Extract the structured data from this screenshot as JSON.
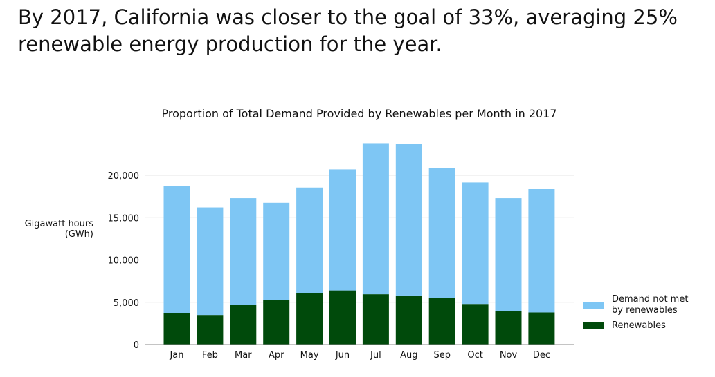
{
  "slide": {
    "title_line1": "By 2017, California was closer to the goal of 33%, averaging 25%",
    "title_line2": "renewable energy production for the year."
  },
  "chart_data": {
    "type": "bar",
    "stacked": true,
    "title": "Proportion of Total Demand Provided by Renewables per Month in 2017",
    "ylabel_line1": "Gigawatt hours",
    "ylabel_line2": "(GWh)",
    "xlabel": "",
    "categories": [
      "Jan",
      "Feb",
      "Mar",
      "Apr",
      "May",
      "Jun",
      "Jul",
      "Aug",
      "Sep",
      "Oct",
      "Nov",
      "Dec"
    ],
    "yticks": [
      0,
      5000,
      10000,
      15000,
      20000
    ],
    "ytick_labels": [
      "0",
      "5,000",
      "10,000",
      "15,000",
      "20,000"
    ],
    "ylim": [
      0,
      24000
    ],
    "grid": true,
    "legend_position": "bottom-right",
    "series": [
      {
        "name": "Renewables",
        "color": "#004a0b",
        "values": [
          3700,
          3500,
          4700,
          5250,
          6050,
          6400,
          5950,
          5800,
          5550,
          4800,
          4000,
          3800
        ]
      },
      {
        "name": "Demand not met by renewables",
        "name_line1": "Demand not met",
        "name_line2": "by renewables",
        "color": "#7ec6f4",
        "values": [
          15000,
          12700,
          12600,
          11500,
          12500,
          14300,
          17850,
          17950,
          15300,
          14350,
          13300,
          14600
        ]
      }
    ]
  }
}
